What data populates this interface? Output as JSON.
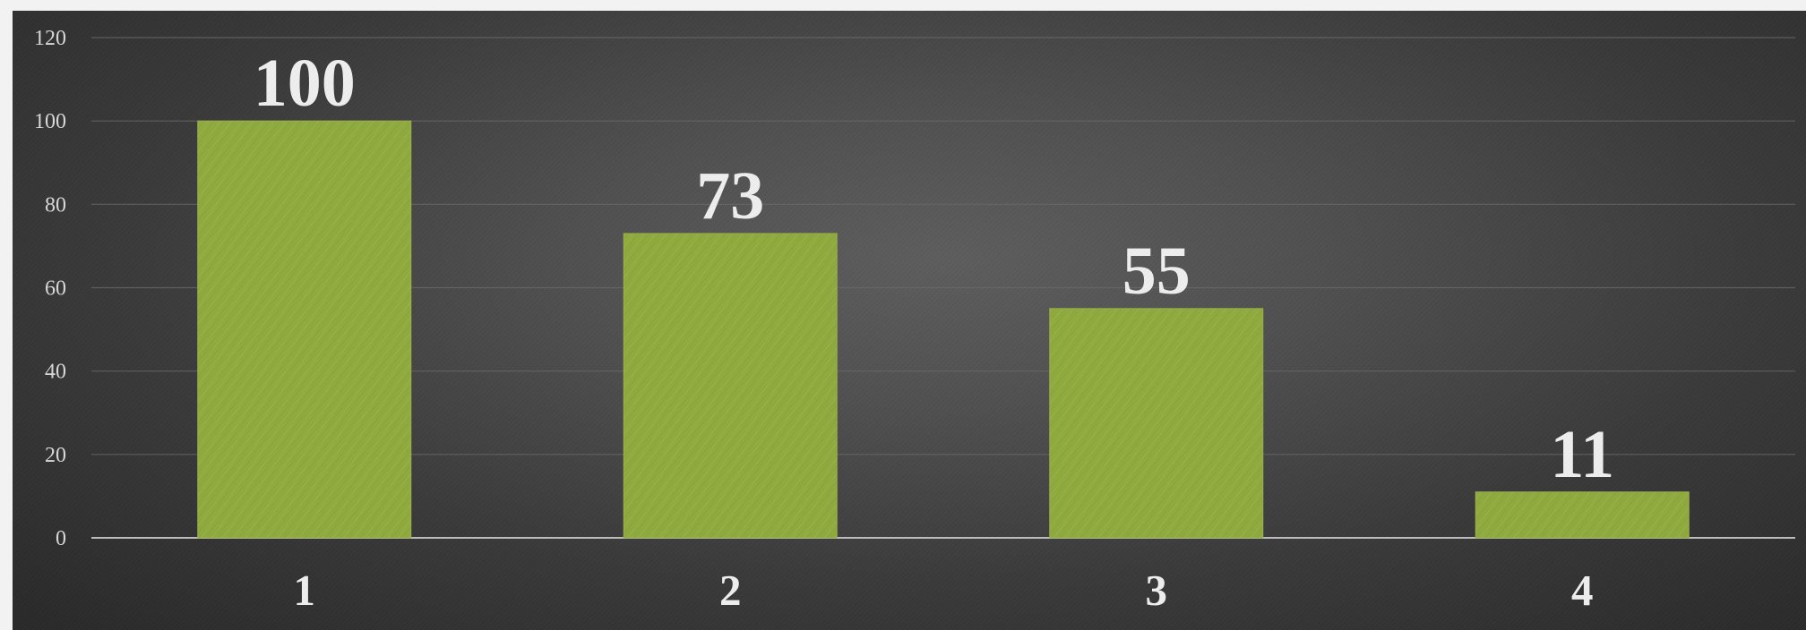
{
  "chart_data": {
    "type": "bar",
    "categories": [
      "1",
      "2",
      "3",
      "4"
    ],
    "values": [
      100,
      73,
      55,
      11
    ],
    "data_labels": [
      "100",
      "73",
      "55",
      "11"
    ],
    "title": "",
    "xlabel": "",
    "ylabel": "",
    "ylim": [
      0,
      120
    ],
    "y_ticks": [
      0,
      20,
      40,
      60,
      80,
      100,
      120
    ],
    "y_tick_labels": [
      "0",
      "20",
      "40",
      "60",
      "80",
      "100",
      "120"
    ],
    "grid": true,
    "legend": "none",
    "colors": {
      "bar": "#8faa3d",
      "bar_texture": "#a2b95b",
      "background": "#4a4a4a",
      "gridline": "#6a6a6a",
      "axis": "#bdbdbd",
      "text": "#eeeeee"
    }
  }
}
